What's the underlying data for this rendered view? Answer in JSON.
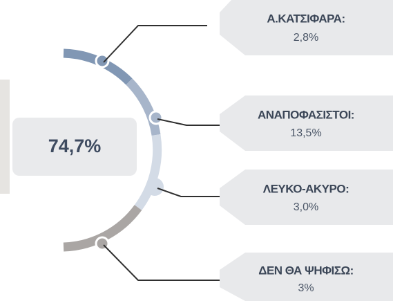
{
  "center": {
    "value": "74,7%"
  },
  "items": [
    {
      "label": "Α.ΚΑΤΣΙΦΑΡΑ:",
      "value": "2,8%"
    },
    {
      "label": "ΑΝΑΠΟΦΑΣΙΣΤΟΙ:",
      "value": "13,5%"
    },
    {
      "label": "ΛΕΥΚΟ-ΑΚΥΡΟ:",
      "value": "3,0%"
    },
    {
      "label": "ΔΕΝ ΘΑ ΨΗΦΙΣΩ:",
      "value": "3%"
    }
  ]
}
